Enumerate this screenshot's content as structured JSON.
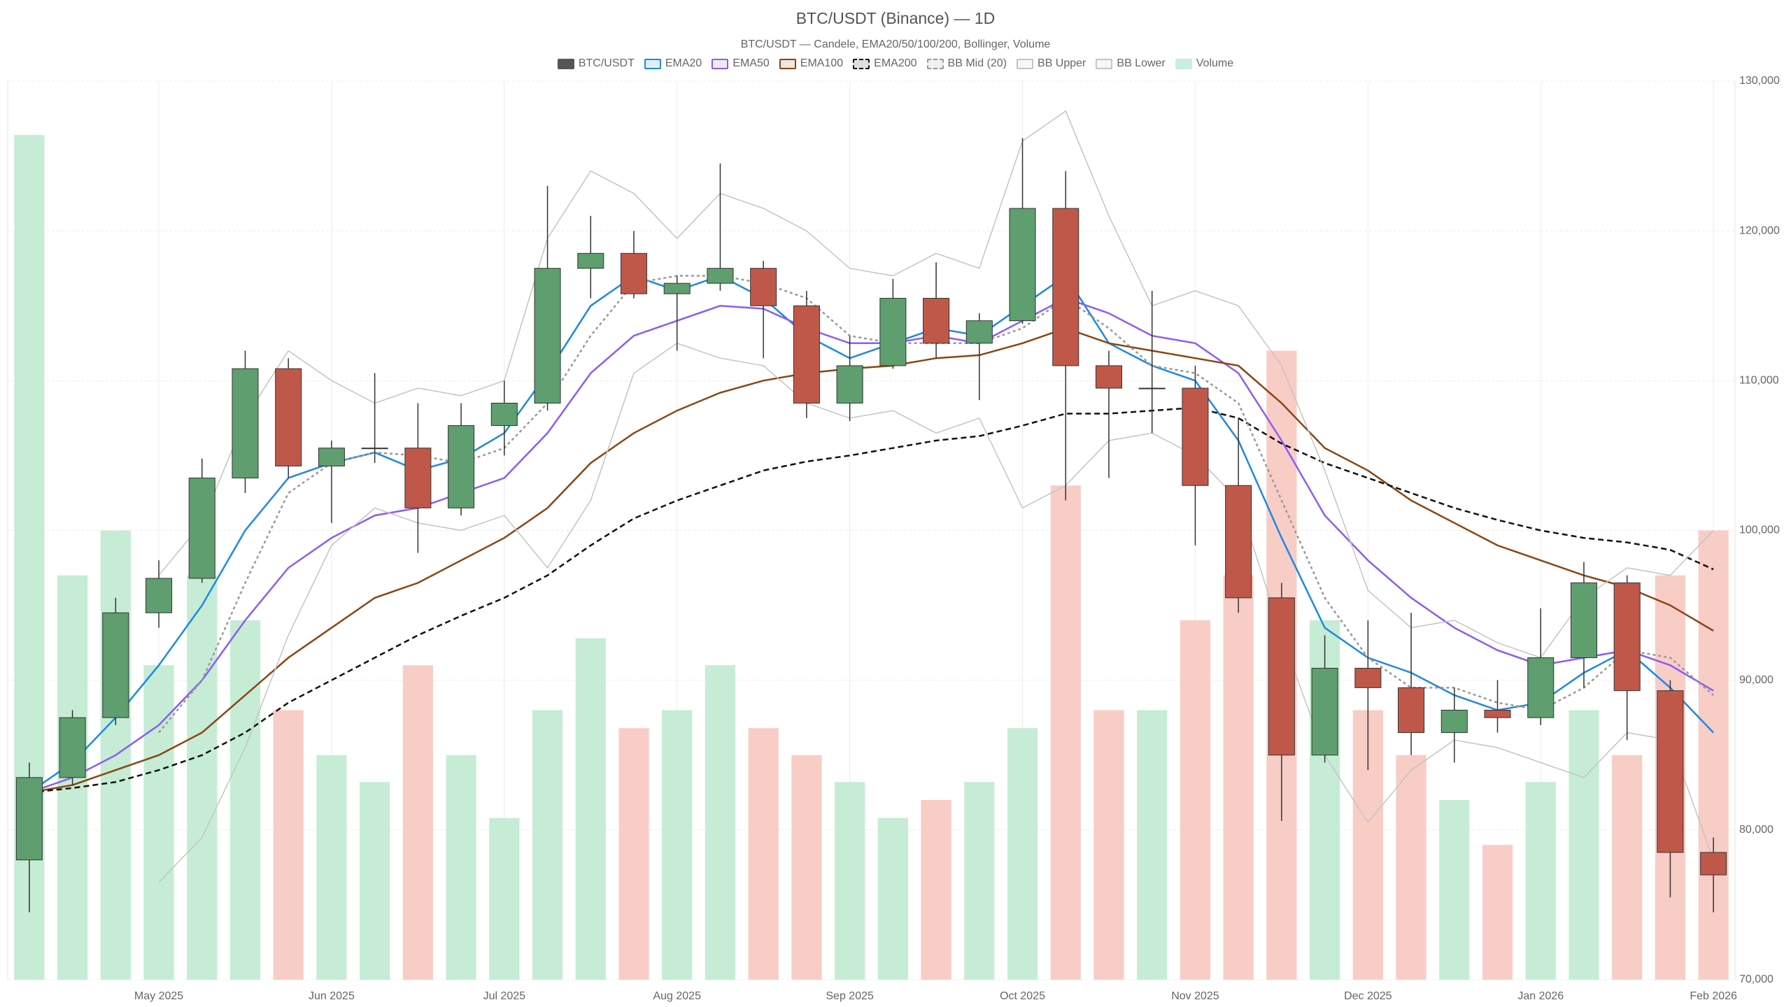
{
  "chart_data": {
    "type": "candlestick",
    "title": "BTC/USDT (Binance) — 1D",
    "subtitle": "BTC/USDT — Candele, EMA20/50/100/200, Bollinger, Volume",
    "categories": [
      null,
      null,
      null,
      "May 2025",
      null,
      null,
      null,
      "Jun 2025",
      null,
      null,
      null,
      "Jul 2025",
      null,
      null,
      null,
      "Aug 2025",
      null,
      null,
      null,
      "Sep 2025",
      null,
      null,
      null,
      "Oct 2025",
      null,
      null,
      null,
      "Nov 2025",
      null,
      null,
      null,
      "Dec 2025",
      null,
      null,
      null,
      "Jan 2026",
      null,
      null,
      null,
      "Feb 2026"
    ],
    "ylim": [
      70000,
      130000
    ],
    "yticks": [
      {
        "value": 70000,
        "label": "70,000"
      },
      {
        "value": 80000,
        "label": "80,000"
      },
      {
        "value": 90000,
        "label": "90,000"
      },
      {
        "value": 100000,
        "label": "100,000"
      },
      {
        "value": 110000,
        "label": "110,000"
      },
      {
        "value": 120000,
        "label": "120,000"
      },
      {
        "value": 130000,
        "label": "130,000"
      }
    ],
    "y2lim": [
      0,
      100
    ],
    "grid": true,
    "legend": "top",
    "series": [
      {
        "name": "BTC/USDT",
        "type": "candlestick",
        "color": "#555555",
        "up_color": "#5f9e6e",
        "down_color": "#c0584a",
        "open": [
          78000,
          83500,
          87500,
          94500,
          96800,
          103500,
          110800,
          104300,
          105500,
          105500,
          101500,
          107000,
          108500,
          117500,
          118500,
          115800,
          116500,
          117500,
          115000,
          108500,
          111000,
          115500,
          112500,
          114000,
          121500,
          111000,
          109500,
          109500,
          103000,
          95500,
          85000,
          90800,
          89500,
          86500,
          88000,
          87500,
          91500,
          96500,
          89300,
          78500
        ],
        "high": [
          84500,
          88000,
          95500,
          98000,
          104800,
          112000,
          111500,
          106000,
          110500,
          108500,
          108500,
          110000,
          123000,
          121000,
          120000,
          117000,
          124500,
          118000,
          116000,
          113000,
          116800,
          117900,
          114500,
          126200,
          124000,
          112000,
          116000,
          111000,
          107500,
          96500,
          93000,
          94000,
          94500,
          89500,
          90000,
          94800,
          97900,
          97000,
          90000,
          79500
        ],
        "low": [
          74500,
          83000,
          87000,
          93500,
          96500,
          102500,
          103500,
          100500,
          104500,
          98500,
          101000,
          105000,
          108000,
          115500,
          115500,
          112000,
          116000,
          111500,
          107500,
          107300,
          110800,
          111500,
          108700,
          113800,
          102000,
          103500,
          106500,
          99000,
          94500,
          80600,
          84500,
          84000,
          85000,
          84500,
          86500,
          87000,
          89500,
          86000,
          75500,
          74500
        ],
        "close": [
          83500,
          87500,
          94500,
          96800,
          103500,
          110800,
          104300,
          105500,
          105500,
          101500,
          107000,
          108500,
          117500,
          118500,
          115800,
          116500,
          117500,
          115000,
          108500,
          111000,
          115500,
          112500,
          114000,
          121500,
          111000,
          109500,
          109500,
          103000,
          95500,
          85000,
          90800,
          89500,
          86500,
          88000,
          87500,
          91500,
          96500,
          89300,
          78500,
          77000
        ]
      },
      {
        "name": "EMA20",
        "type": "line",
        "color": "#1e88e5",
        "values": [
          82500,
          84500,
          87500,
          91000,
          95000,
          100000,
          103500,
          104500,
          105200,
          104000,
          104800,
          106500,
          110500,
          115000,
          117000,
          116000,
          117000,
          115500,
          113000,
          111500,
          112500,
          113500,
          113000,
          115000,
          117000,
          112500,
          111000,
          110000,
          106000,
          99500,
          93500,
          91500,
          90500,
          89000,
          88000,
          88500,
          90500,
          92000,
          89500,
          86500
        ]
      },
      {
        "name": "EMA50",
        "type": "line",
        "color": "#8b5cf6",
        "values": [
          82500,
          83500,
          85000,
          87000,
          90000,
          94000,
          97500,
          99500,
          101000,
          101500,
          102500,
          103500,
          106500,
          110500,
          113000,
          114000,
          115000,
          114800,
          113500,
          112500,
          112500,
          113000,
          112500,
          114000,
          115500,
          114500,
          113000,
          112500,
          110500,
          106000,
          101000,
          98000,
          95500,
          93500,
          92000,
          91000,
          91500,
          92000,
          91000,
          89300
        ]
      },
      {
        "name": "EMA100",
        "type": "line",
        "color": "#8b4513",
        "values": [
          82500,
          83000,
          84000,
          85000,
          86500,
          89000,
          91500,
          93500,
          95500,
          96500,
          98000,
          99500,
          101500,
          104500,
          106500,
          108000,
          109200,
          110000,
          110500,
          110800,
          111000,
          111500,
          111700,
          112500,
          113500,
          112500,
          112000,
          111500,
          111000,
          108500,
          105500,
          104000,
          102000,
          100500,
          99000,
          98000,
          97000,
          96200,
          95000,
          93300
        ]
      },
      {
        "name": "EMA200",
        "type": "line",
        "color": "#111111",
        "line_style": "dashed",
        "values": [
          82500,
          82800,
          83200,
          84000,
          85000,
          86500,
          88500,
          90000,
          91500,
          93000,
          94300,
          95500,
          97000,
          99000,
          100800,
          102000,
          103000,
          104000,
          104600,
          105000,
          105500,
          106000,
          106300,
          107000,
          107800,
          107800,
          108000,
          108200,
          107500,
          105800,
          104500,
          103500,
          102500,
          101500,
          100700,
          100000,
          99500,
          99200,
          98700,
          97400
        ]
      },
      {
        "name": "BB Mid (20)",
        "type": "line",
        "color": "#999999",
        "line_style": "dotted",
        "values": [
          null,
          null,
          null,
          86500,
          90000,
          96500,
          102500,
          104500,
          105200,
          105000,
          104500,
          105500,
          108500,
          113000,
          116500,
          117000,
          117000,
          116500,
          115500,
          113000,
          112500,
          112500,
          112500,
          113500,
          115500,
          113500,
          111000,
          110500,
          108500,
          102000,
          95500,
          91500,
          89500,
          89500,
          88500,
          88000,
          89500,
          92000,
          91500,
          89000
        ]
      },
      {
        "name": "BB Upper",
        "type": "line",
        "color": "#c4c4c4",
        "values": [
          null,
          null,
          null,
          97000,
          100500,
          107500,
          112000,
          110000,
          108500,
          109500,
          109000,
          110000,
          119500,
          124000,
          122500,
          119500,
          122500,
          121500,
          120000,
          117500,
          117000,
          118500,
          117500,
          126000,
          128000,
          121000,
          115000,
          116000,
          115000,
          111000,
          104000,
          96000,
          93500,
          94000,
          92500,
          91500,
          95500,
          97500,
          97000,
          100000
        ]
      },
      {
        "name": "BB Lower",
        "type": "line",
        "color": "#c4c4c4",
        "values": [
          null,
          null,
          null,
          76500,
          79500,
          85500,
          93000,
          99000,
          101500,
          100500,
          100000,
          101000,
          97500,
          102000,
          110500,
          112500,
          111500,
          111000,
          108500,
          107500,
          108000,
          106500,
          107500,
          101500,
          103000,
          106000,
          106500,
          105000,
          102000,
          93000,
          85000,
          80500,
          84000,
          86000,
          85500,
          84500,
          83500,
          86500,
          86000,
          78000
        ]
      },
      {
        "name": "Volume",
        "type": "volume",
        "axis": "y2",
        "color": "#c9eed9",
        "up_color": "#c6ecd5",
        "down_color": "#f8cdc6",
        "values": [
          94,
          45,
          50,
          35,
          45,
          40,
          30,
          25,
          22,
          35,
          25,
          18,
          30,
          38,
          28,
          30,
          35,
          28,
          25,
          22,
          18,
          20,
          22,
          28,
          55,
          30,
          30,
          40,
          45,
          70,
          40,
          30,
          25,
          20,
          15,
          22,
          30,
          25,
          45,
          50
        ]
      }
    ]
  }
}
